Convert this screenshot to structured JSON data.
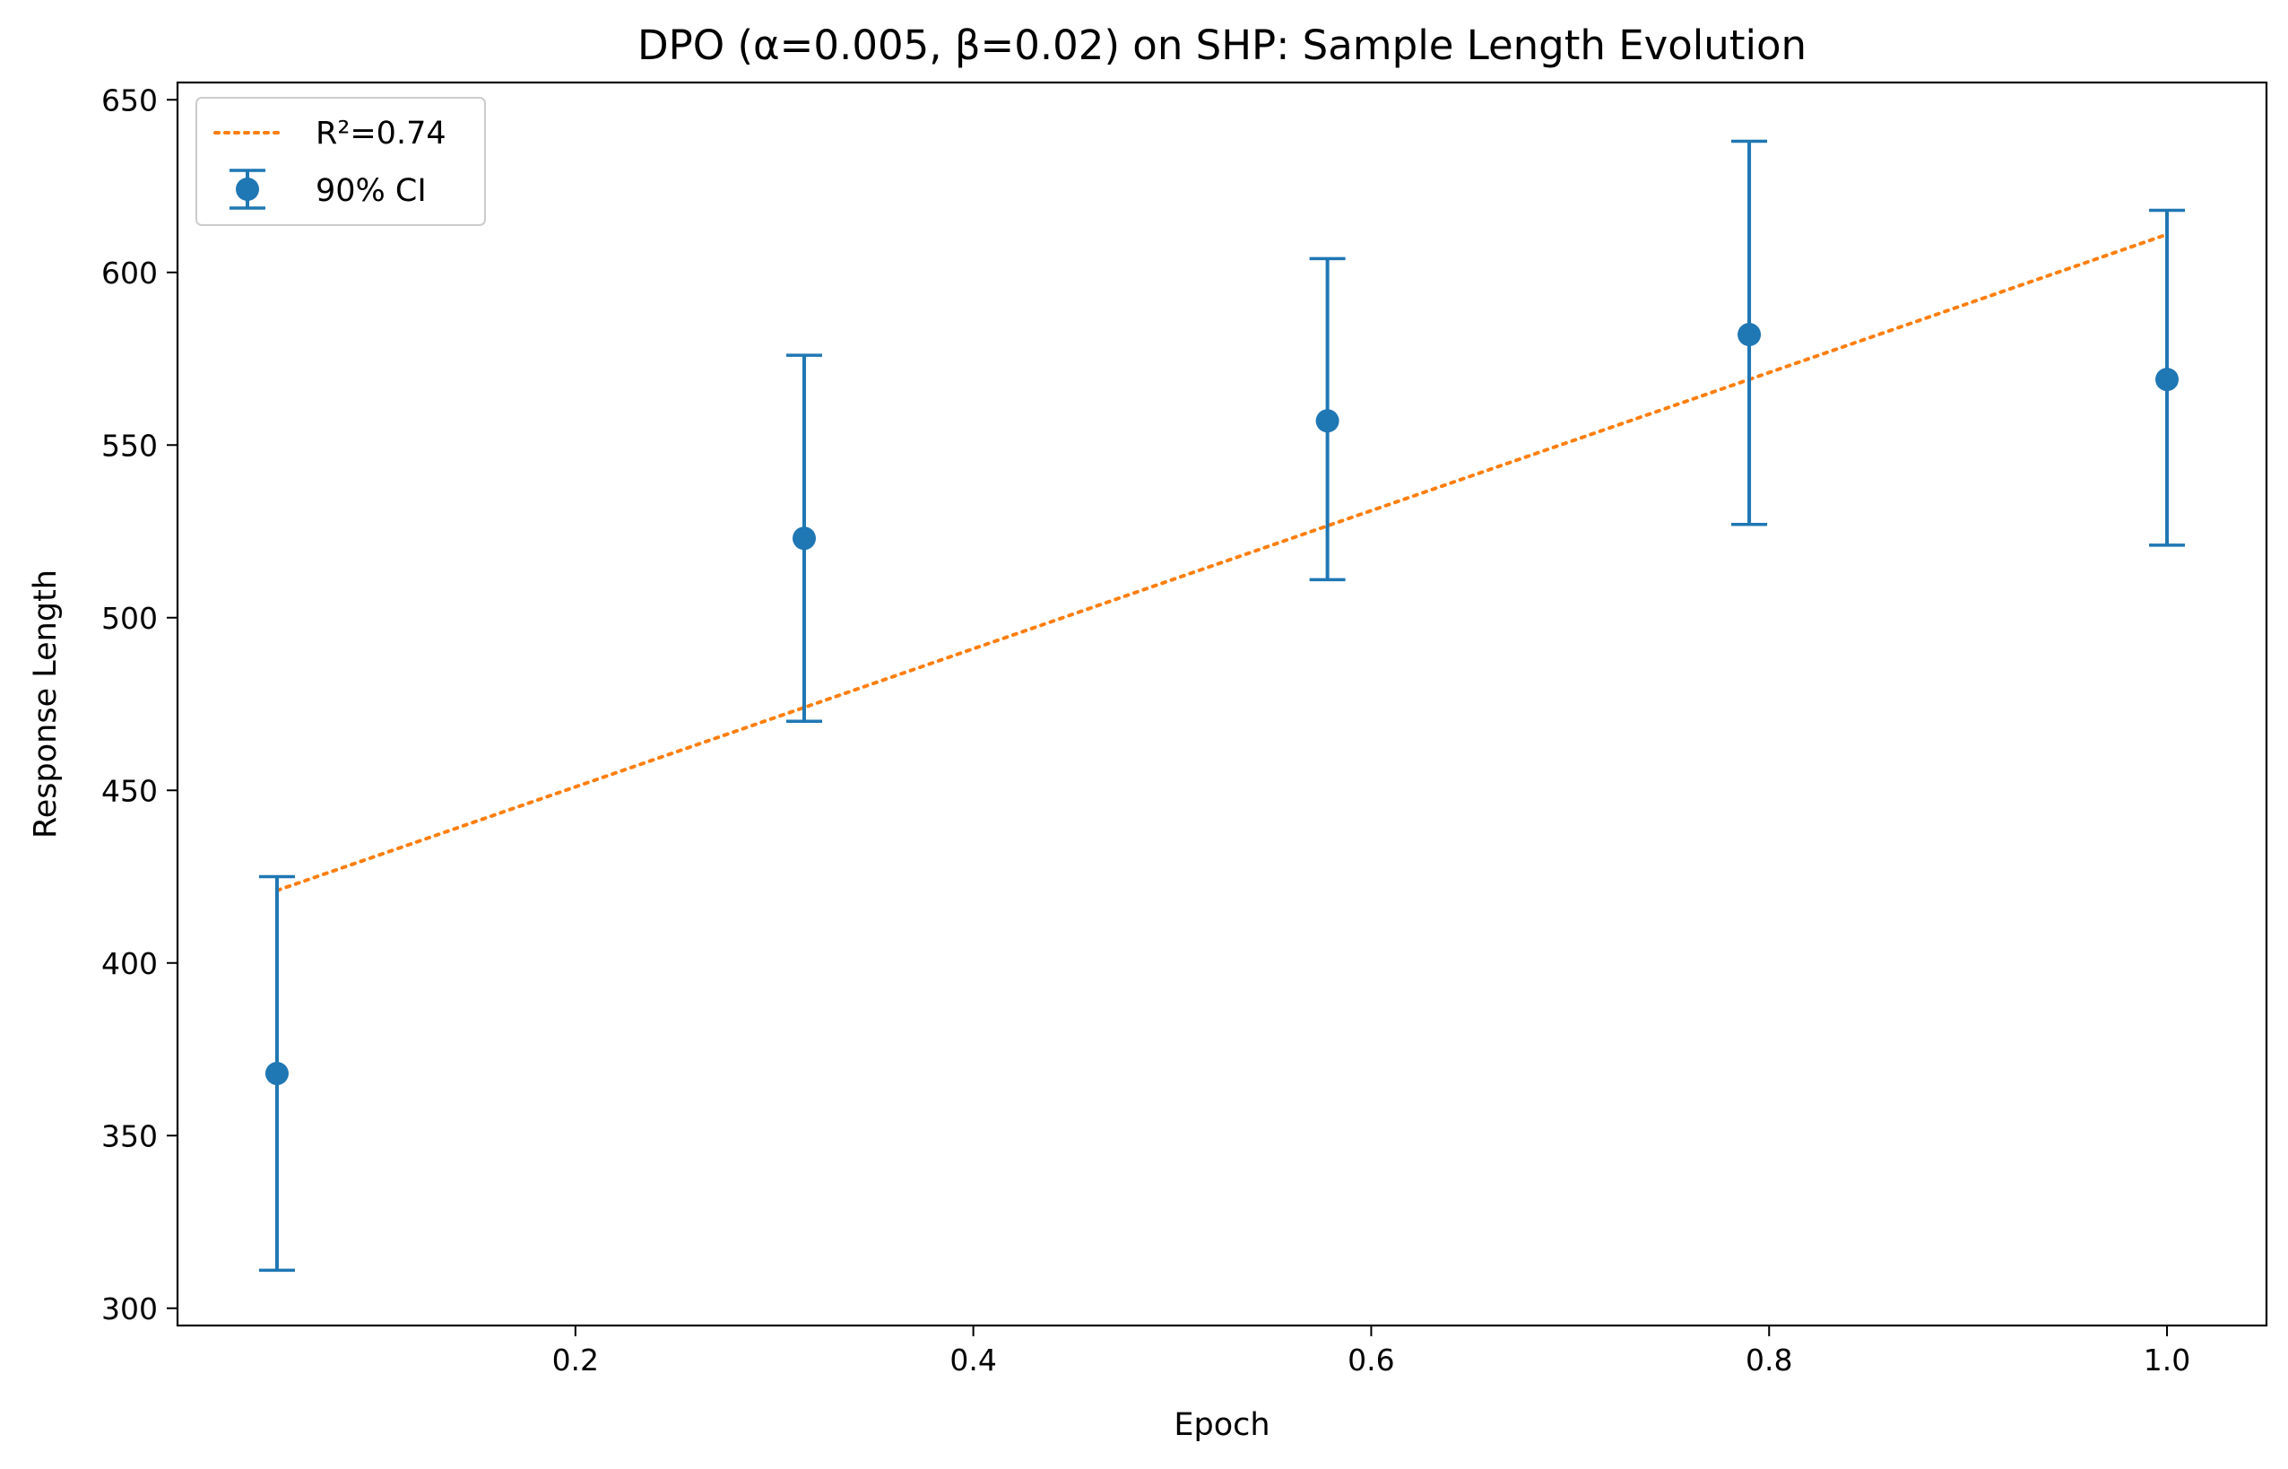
{
  "chart_data": {
    "type": "scatter",
    "title": "DPO (α=0.005, β=0.02) on SHP: Sample Length Evolution",
    "xlabel": "Epoch",
    "ylabel": "Response Length",
    "xlim": [
      0.0,
      1.05
    ],
    "ylim": [
      295,
      655
    ],
    "xticks": [
      0.2,
      0.4,
      0.6,
      0.8,
      1.0
    ],
    "xtick_labels": [
      "0.2",
      "0.4",
      "0.6",
      "0.8",
      "1.0"
    ],
    "yticks": [
      300,
      350,
      400,
      450,
      500,
      550,
      600,
      650
    ],
    "ytick_labels": [
      "300",
      "350",
      "400",
      "450",
      "500",
      "550",
      "600",
      "650"
    ],
    "grid": false,
    "legend_position": "top-left",
    "series": [
      {
        "name": "90% CI",
        "kind": "errorbar",
        "color": "#1f77b4",
        "x": [
          0.05,
          0.315,
          0.578,
          0.79,
          1.0
        ],
        "y": [
          368,
          523,
          557,
          582,
          569
        ],
        "lower": [
          311,
          470,
          511,
          527,
          521
        ],
        "upper": [
          425,
          576,
          604,
          638,
          618
        ]
      },
      {
        "name": "R²=0.74",
        "kind": "trendline",
        "color": "#ff7f0e",
        "style": "dotted",
        "x": [
          0.05,
          1.0
        ],
        "y": [
          421,
          611
        ]
      }
    ]
  }
}
